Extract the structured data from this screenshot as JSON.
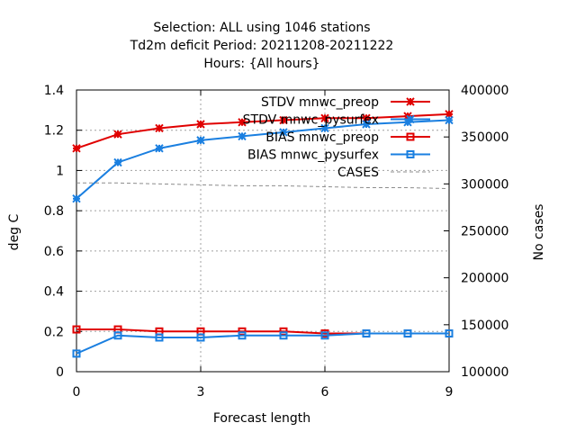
{
  "chart_data": {
    "type": "line",
    "title_lines": [
      "Selection: ALL using  1046 stations",
      "Td2m deficit   Period: 20211208-20211222",
      "Hours: {All hours}"
    ],
    "xlabel": "Forecast length",
    "ylabel": "deg C",
    "y2label": "No cases",
    "xlim": [
      0,
      9
    ],
    "ylim": [
      0,
      1.4
    ],
    "y2lim": [
      100000,
      400000
    ],
    "xticks": [
      "0",
      "3",
      "6",
      "9"
    ],
    "yticks": [
      "0",
      "0.2",
      "0.4",
      "0.6",
      "0.8",
      "1",
      "1.2",
      "1.4"
    ],
    "y2ticks": [
      "100000",
      "150000",
      "200000",
      "250000",
      "300000",
      "350000",
      "400000"
    ],
    "grid": true,
    "legend_position": "top-right",
    "x": [
      0,
      1,
      2,
      3,
      4,
      5,
      6,
      7,
      8,
      9
    ],
    "series": [
      {
        "name": "STDV mnwc_preop",
        "axis": "y",
        "color": "#e00000",
        "marker": "star",
        "values": [
          1.11,
          1.18,
          1.21,
          1.23,
          1.24,
          1.25,
          1.26,
          1.26,
          1.27,
          1.28
        ]
      },
      {
        "name": "STDV mnwc_pysurfex",
        "axis": "y",
        "color": "#1a7fe0",
        "marker": "star",
        "values": [
          0.86,
          1.04,
          1.11,
          1.15,
          1.17,
          1.19,
          1.21,
          1.23,
          1.24,
          1.25
        ]
      },
      {
        "name": "BIAS mnwc_preop",
        "axis": "y",
        "color": "#e00000",
        "marker": "square",
        "values": [
          0.21,
          0.21,
          0.2,
          0.2,
          0.2,
          0.2,
          0.19,
          0.19,
          0.19,
          0.19
        ]
      },
      {
        "name": "BIAS mnwc_pysurfex",
        "axis": "y",
        "color": "#1a7fe0",
        "marker": "square",
        "values": [
          0.09,
          0.18,
          0.17,
          0.17,
          0.18,
          0.18,
          0.18,
          0.19,
          0.19,
          0.19
        ]
      },
      {
        "name": "CASES",
        "axis": "y2",
        "color": "#8c8c8c",
        "marker": "none",
        "dashed": true,
        "values": [
          301000,
          301000,
          300000,
          299000,
          298000,
          298000,
          297000,
          296000,
          296000,
          295000
        ]
      }
    ]
  }
}
